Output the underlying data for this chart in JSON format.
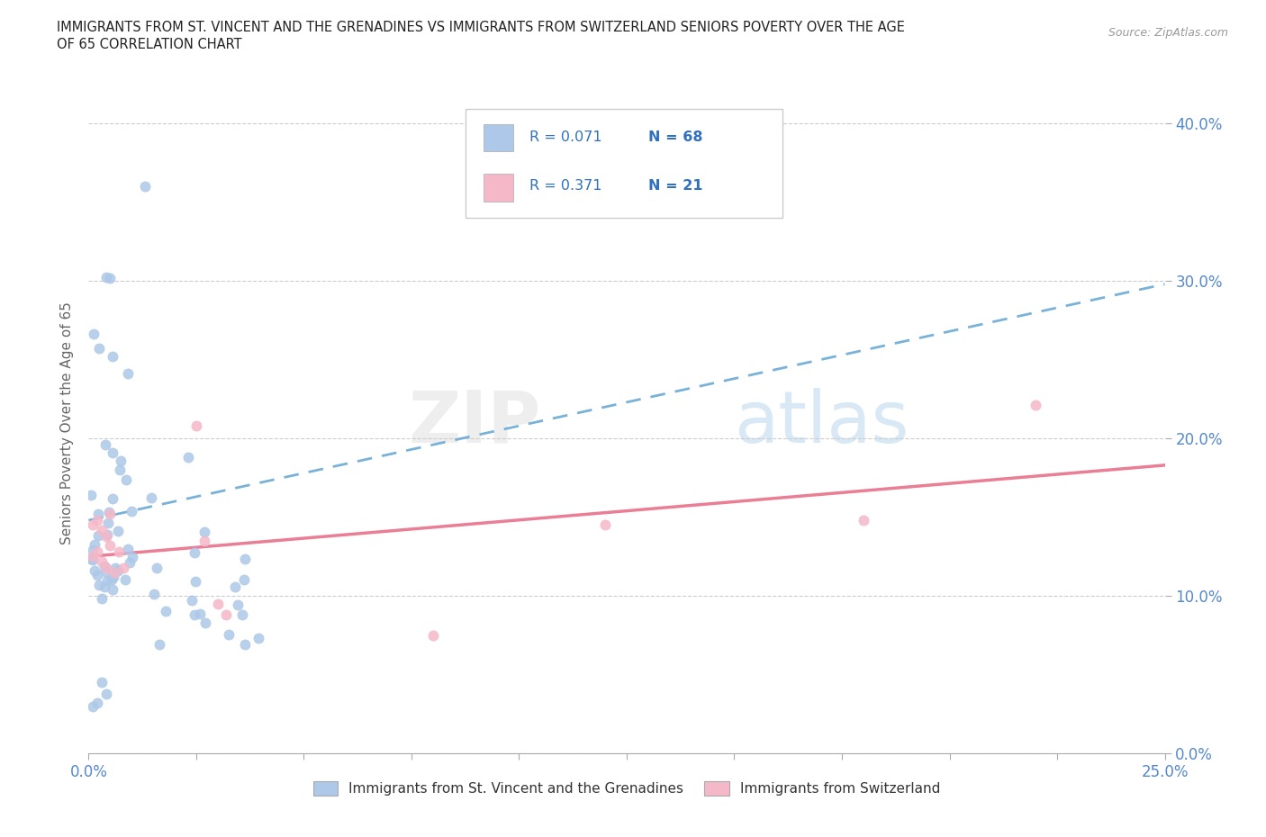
{
  "title_line1": "IMMIGRANTS FROM ST. VINCENT AND THE GRENADINES VS IMMIGRANTS FROM SWITZERLAND SENIORS POVERTY OVER THE AGE",
  "title_line2": "OF 65 CORRELATION CHART",
  "source": "Source: ZipAtlas.com",
  "ylabel": "Seniors Poverty Over the Age of 65",
  "xmin": 0.0,
  "xmax": 0.25,
  "ymin": 0.0,
  "ymax": 0.42,
  "series1_color": "#adc8e8",
  "series2_color": "#f5b8c8",
  "trendline1_color": "#6aaad4",
  "trendline2_color": "#e8708a",
  "R1": 0.071,
  "N1": 68,
  "R2": 0.371,
  "N2": 21,
  "series1_label": "Immigrants from St. Vincent and the Grenadines",
  "series2_label": "Immigrants from Switzerland",
  "ytick_positions": [
    0.0,
    0.1,
    0.2,
    0.3,
    0.4
  ],
  "ytick_labels": [
    "0.0%",
    "10.0%",
    "20.0%",
    "30.0%",
    "40.0%"
  ],
  "xtick_labels_shown": [
    "0.0%",
    "25.0%"
  ],
  "trendline1_y0": 0.148,
  "trendline1_y1": 0.298,
  "trendline2_y0": 0.125,
  "trendline2_y1": 0.183,
  "legend_R_color": "#3070c0",
  "legend_N_color": "#3070c0"
}
